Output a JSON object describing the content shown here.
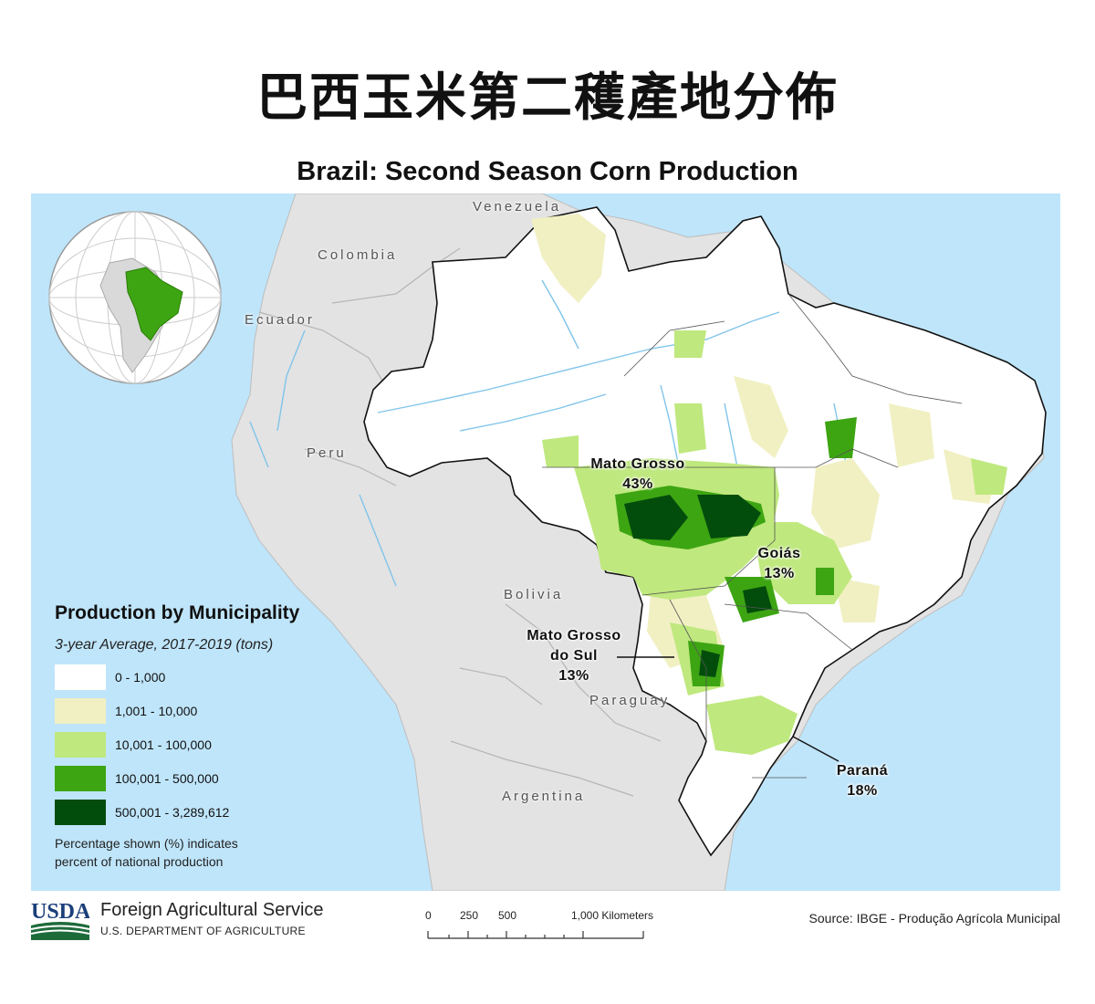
{
  "main_title": "巴西玉米第二穫產地分佈",
  "map_title": "Brazil: Second Season Corn Production",
  "countries": {
    "venezuela": "Venezuela",
    "colombia": "Colombia",
    "ecuador": "Ecuador",
    "peru": "Peru",
    "bolivia": "Bolivia",
    "paraguay": "Paraguay",
    "argentina": "Argentina"
  },
  "states": {
    "mato_grosso": {
      "name": "Mato Grosso",
      "share": "43%"
    },
    "goias": {
      "name": "Goiás",
      "share": "13%"
    },
    "mato_grosso_do_sul": {
      "name_line1": "Mato Grosso",
      "name_line2": "do Sul",
      "share": "13%"
    },
    "parana": {
      "name": "Paraná",
      "share": "18%"
    }
  },
  "legend": {
    "title": "Production by Municipality",
    "subtitle": "3-year Average, 2017-2019 (tons)",
    "classes": [
      {
        "label": "0 - 1,000",
        "color": "#ffffff"
      },
      {
        "label": "1,001 - 10,000",
        "color": "#f1f0c3"
      },
      {
        "label": "10,001 - 100,000",
        "color": "#bfe87e"
      },
      {
        "label": "100,001 - 500,000",
        "color": "#3da512"
      },
      {
        "label": "500,001 - 3,289,612",
        "color": "#034d0c"
      }
    ],
    "note_line1": "Percentage shown (%) indicates",
    "note_line2": "percent of national production"
  },
  "colors": {
    "ocean": "#bfe5fa",
    "neighbor_land": "#e3e3e3",
    "brazil_land": "#ffffff",
    "rivers": "#7fc4ea",
    "highlight": "#3da512"
  },
  "footer": {
    "logo_text": "USDA",
    "agency": "Foreign Agricultural Service",
    "department": "U.S. DEPARTMENT OF AGRICULTURE",
    "scale_ticks": [
      "0",
      "250",
      "500",
      "1,000 Kilometers"
    ],
    "source": "Source: IBGE - Produção Agrícola Municipal"
  }
}
